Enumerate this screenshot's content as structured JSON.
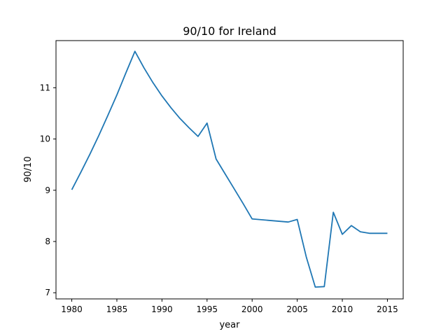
{
  "chart_data": {
    "type": "line",
    "title": "90/10 for Ireland",
    "xlabel": "year",
    "ylabel": "90/10",
    "xlim": [
      1978.25,
      1981.75
    ],
    "ylim": [
      6.88,
      11.92
    ],
    "xticks": [
      1980,
      1985,
      1990,
      1995,
      2000,
      2005,
      2010,
      2015
    ],
    "yticks": [
      7,
      8,
      9,
      10,
      11
    ],
    "grid": false,
    "series": [
      {
        "color": "#1f77b4",
        "x": [
          1980,
          1981,
          1982,
          1983,
          1984,
          1985,
          1986,
          1987,
          1988,
          1989,
          1990,
          1991,
          1992,
          1993,
          1994,
          1995,
          1996,
          1997,
          1998,
          1999,
          2000,
          2004,
          2005,
          2006,
          2007,
          2008,
          2009,
          2010,
          2011,
          2012,
          2013,
          2014,
          2015
        ],
        "y": [
          9.01,
          9.35,
          9.7,
          10.07,
          10.46,
          10.86,
          11.29,
          11.71,
          11.39,
          11.1,
          10.84,
          10.61,
          10.4,
          10.22,
          10.05,
          10.31,
          9.61,
          9.32,
          9.03,
          8.74,
          8.44,
          8.38,
          8.43,
          7.7,
          7.11,
          7.12,
          8.57,
          8.14,
          8.31,
          8.19,
          8.16,
          8.16,
          8.16
        ]
      }
    ]
  }
}
